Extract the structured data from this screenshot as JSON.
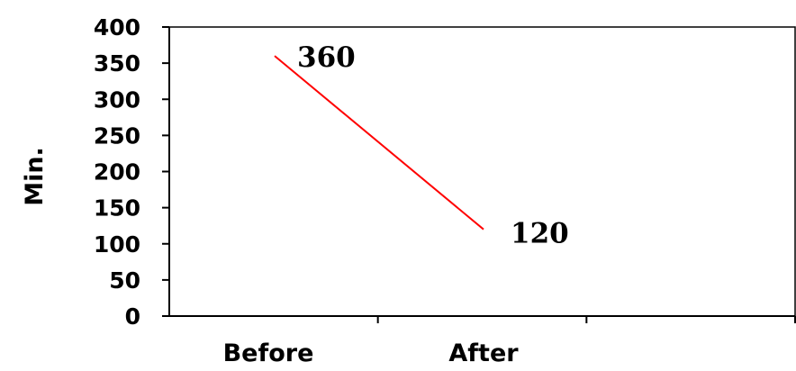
{
  "chart_data": {
    "type": "line",
    "title": "",
    "xlabel": "",
    "ylabel": "Min.",
    "categories": [
      "Before",
      "After"
    ],
    "series": [
      {
        "values": [
          360,
          120
        ],
        "color": "#ff0000"
      }
    ],
    "data_labels": [
      "360",
      "120"
    ],
    "yticks": [
      "0",
      "50",
      "100",
      "150",
      "200",
      "250",
      "300",
      "350",
      "400"
    ],
    "ylim": [
      0,
      400
    ],
    "grid": false,
    "legend": "none"
  }
}
